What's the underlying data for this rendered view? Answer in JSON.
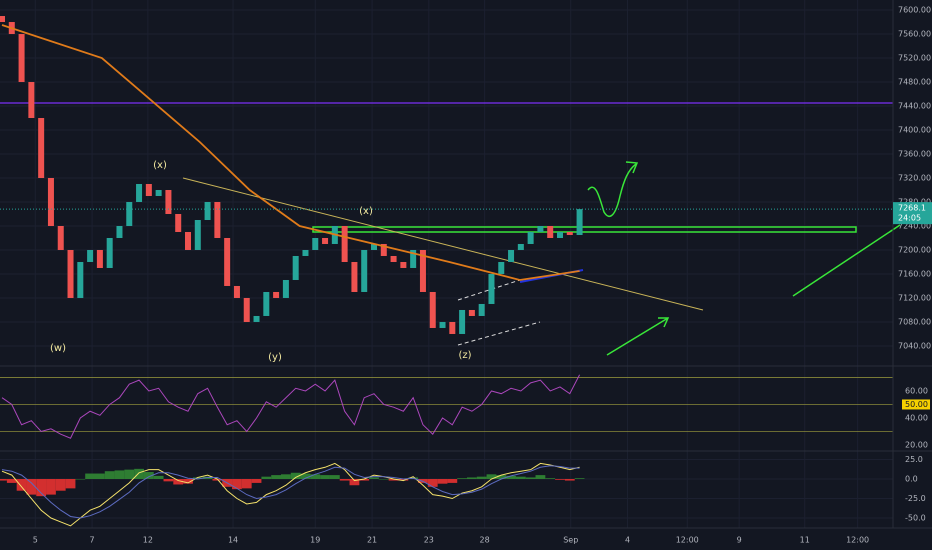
{
  "chart_data": {
    "type": "candlestick",
    "xlim": [
      0,
      95
    ],
    "xticks": [
      {
        "value": 3.4,
        "label": "5"
      },
      {
        "value": 9.2,
        "label": "7"
      },
      {
        "value": 14.9,
        "label": "12"
      },
      {
        "value": 23.6,
        "label": "14"
      },
      {
        "value": 32.0,
        "label": "19"
      },
      {
        "value": 37.8,
        "label": "21"
      },
      {
        "value": 43.6,
        "label": "23"
      },
      {
        "value": 49.3,
        "label": "28"
      },
      {
        "value": 58.1,
        "label": "Sep"
      },
      {
        "value": 63.9,
        "label": "4"
      },
      {
        "value": 70.0,
        "label": "12:00"
      },
      {
        "value": 75.3,
        "label": "9"
      },
      {
        "value": 82.0,
        "label": "11"
      },
      {
        "value": 87.4,
        "label": "12:00"
      }
    ],
    "ylim": [
      7008.3,
      7616.7
    ],
    "yticks": [
      {
        "value": 7600,
        "label": "7600.00"
      },
      {
        "value": 7560,
        "label": "7560.00"
      },
      {
        "value": 7520,
        "label": "7520.00"
      },
      {
        "value": 7480,
        "label": "7480.00"
      },
      {
        "value": 7440,
        "label": "7440.00"
      },
      {
        "value": 7400,
        "label": "7400.00"
      },
      {
        "value": 7360,
        "label": "7360.00"
      },
      {
        "value": 7320,
        "label": "7320.00"
      },
      {
        "value": 7280,
        "label": "7280.00"
      },
      {
        "value": 7240,
        "label": "7240.00"
      },
      {
        "value": 7200,
        "label": "7200.00"
      },
      {
        "value": 7160,
        "label": "7160.00"
      },
      {
        "value": 7120,
        "label": "7120.00"
      },
      {
        "value": 7080,
        "label": "7080.00"
      },
      {
        "value": 7040,
        "label": "7040.00"
      }
    ],
    "up_color": "#26a69a",
    "down_color": "#ef5350",
    "first_open": 7590,
    "values": [
      7580,
      7560,
      7480,
      7420,
      7320,
      7240,
      7200,
      7120,
      7180,
      7200,
      7170,
      7220,
      7240,
      7280,
      7310,
      7290,
      7300,
      7260,
      7230,
      7200,
      7250,
      7280,
      7220,
      7140,
      7120,
      7080,
      7090,
      7130,
      7120,
      7150,
      7190,
      7200,
      7220,
      7210,
      7240,
      7180,
      7130,
      7200,
      7210,
      7190,
      7180,
      7170,
      7200,
      7130,
      7070,
      7080,
      7060,
      7100,
      7090,
      7110,
      7160,
      7180,
      7200,
      7210,
      7230,
      7240,
      7220,
      7230,
      7225,
      7268.1
    ],
    "last_price": {
      "value": 7268.1,
      "label": "7268.1"
    },
    "countdown": "24:05",
    "ma": {
      "color": "#e07b1a",
      "x": [
        0,
        10.2,
        20.2,
        25.3,
        30.4,
        40.6,
        45.7,
        52.9,
        59
      ],
      "values": [
        7575,
        7520,
        7380,
        7300,
        7240,
        7200,
        7180,
        7150,
        7165
      ]
    },
    "wave_labels": [
      "(w)",
      "(x)",
      "(y)",
      "(x)",
      "(z)"
    ],
    "rsi": {
      "color": "#ab47bc",
      "ylim": [
        16.3,
        77.0
      ],
      "yticks": [
        {
          "value": 60,
          "label": "60.00"
        },
        {
          "value": 50,
          "label": "50.00"
        },
        {
          "value": 40,
          "label": "40.00"
        },
        {
          "value": 20,
          "label": "20.00"
        }
      ],
      "levels": [
        70,
        50,
        30
      ],
      "values": [
        55,
        50,
        35,
        38,
        30,
        32,
        28,
        25,
        40,
        45,
        42,
        50,
        55,
        65,
        68,
        60,
        62,
        52,
        48,
        45,
        58,
        62,
        48,
        35,
        38,
        30,
        40,
        52,
        48,
        55,
        62,
        60,
        65,
        60,
        68,
        45,
        35,
        55,
        58,
        50,
        48,
        45,
        55,
        35,
        28,
        40,
        35,
        48,
        45,
        50,
        60,
        58,
        62,
        60,
        66,
        68,
        60,
        63,
        58,
        72
      ]
    },
    "macd": {
      "ylim": [
        -61.5,
        34.6
      ],
      "yticks": [
        {
          "value": 25,
          "label": "25.0"
        },
        {
          "value": 0,
          "label": "0.0"
        },
        {
          "value": -25,
          "label": "-25.0"
        },
        {
          "value": -50,
          "label": "-50.0"
        }
      ],
      "macd": {
        "color": "#f5e26b",
        "values": [
          10,
          5,
          -10,
          -25,
          -40,
          -50,
          -55,
          -60,
          -50,
          -40,
          -35,
          -25,
          -15,
          -5,
          8,
          12,
          12,
          5,
          -2,
          -5,
          2,
          5,
          0,
          -15,
          -25,
          -32,
          -30,
          -20,
          -15,
          -8,
          2,
          8,
          12,
          15,
          20,
          12,
          -2,
          0,
          5,
          3,
          0,
          -2,
          3,
          -8,
          -20,
          -22,
          -25,
          -18,
          -15,
          -10,
          0,
          5,
          8,
          10,
          12,
          20,
          18,
          15,
          12,
          15
        ]
      },
      "signal": {
        "color": "#5c6bc0",
        "values": [
          12,
          10,
          5,
          -5,
          -18,
          -30,
          -40,
          -48,
          -50,
          -47,
          -42,
          -35,
          -26,
          -17,
          -5,
          3,
          8,
          8,
          5,
          1,
          0,
          2,
          2,
          -5,
          -12,
          -20,
          -25,
          -23,
          -20,
          -14,
          -6,
          1,
          6,
          10,
          15,
          14,
          6,
          2,
          3,
          3,
          2,
          0,
          1,
          -3,
          -10,
          -16,
          -20,
          -19,
          -17,
          -13,
          -6,
          0,
          4,
          7,
          10,
          15,
          17,
          16,
          14,
          14
        ]
      },
      "histogram": {
        "up_color": "#2e7d32",
        "down_color": "#d32f2f",
        "values": [
          -2,
          -5,
          -15,
          -20,
          -22,
          -20,
          -15,
          -12,
          0,
          7,
          7,
          10,
          11,
          12,
          13,
          9,
          4,
          -3,
          -7,
          -6,
          2,
          3,
          -2,
          -10,
          -13,
          -12,
          -5,
          3,
          5,
          6,
          8,
          7,
          6,
          5,
          5,
          -2,
          -8,
          -2,
          2,
          0,
          -2,
          -2,
          2,
          -5,
          -10,
          -6,
          -5,
          1,
          2,
          3,
          6,
          5,
          4,
          3,
          2,
          5,
          1,
          -1,
          -2,
          1
        ]
      }
    }
  }
}
